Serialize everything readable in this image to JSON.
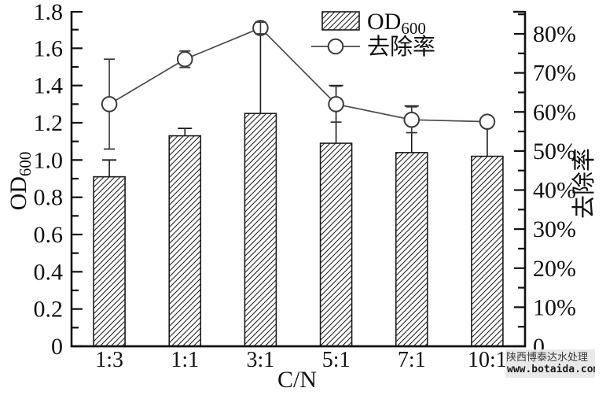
{
  "chart_data": {
    "type": "bar",
    "subtype": "bar+line dual-axis combo",
    "categories": [
      "1:3",
      "1:1",
      "3:1",
      "5:1",
      "7:1",
      "10:1"
    ],
    "xlabel": "C/N",
    "left_axis": {
      "title_main": "OD",
      "title_sub": "600",
      "min": 0,
      "max": 1.8,
      "major_step": 0.2,
      "minor_step": 0.1,
      "tick_labels": [
        "0",
        "0.2",
        "0.4",
        "0.6",
        "0.8",
        "1.0",
        "1.2",
        "1.4",
        "1.6",
        "1.8"
      ]
    },
    "right_axis": {
      "title": "去除率",
      "min": 0,
      "max_labeled": 80,
      "major_step": 10,
      "minor_step": 5,
      "tick_labels": [
        "0",
        "10%",
        "20%",
        "30%",
        "40%",
        "50%",
        "60%",
        "70%",
        "80%"
      ]
    },
    "series": [
      {
        "name": "OD600",
        "type": "bar",
        "axis": "left",
        "marker": "hatched-bar",
        "values": [
          0.91,
          1.13,
          1.25,
          1.09,
          1.04,
          1.02
        ],
        "errors_up": [
          0.09,
          0.04,
          0.44,
          0.31,
          0.25,
          0.19
        ]
      },
      {
        "name": "去除率",
        "type": "line",
        "axis": "right",
        "unit": "%",
        "marker": "open-circle",
        "values": [
          62,
          73.5,
          81.5,
          62,
          58,
          57.5
        ],
        "errors": [
          11.5,
          2.1,
          1.5,
          4.6,
          3.3,
          1.0
        ]
      }
    ],
    "legend": {
      "position": "top-center",
      "items": [
        {
          "marker": "hatched-rect",
          "label_main": "OD",
          "label_sub": "600"
        },
        {
          "marker": "line-open-circle",
          "label": "去除率"
        }
      ]
    },
    "grid": "off"
  },
  "watermark": {
    "line1": "陕西博泰达水处理",
    "line2": "www.botaida.com"
  },
  "colors": {
    "ink": "#111111",
    "bar_stroke": "#1a1a1a",
    "bar_fill": "#ffffff",
    "hatch": "#222222",
    "line": "#4a4a4a",
    "circle_stroke": "#3a3a3a",
    "background": "#ffffff",
    "watermark_bg": "#e8e8e8"
  }
}
